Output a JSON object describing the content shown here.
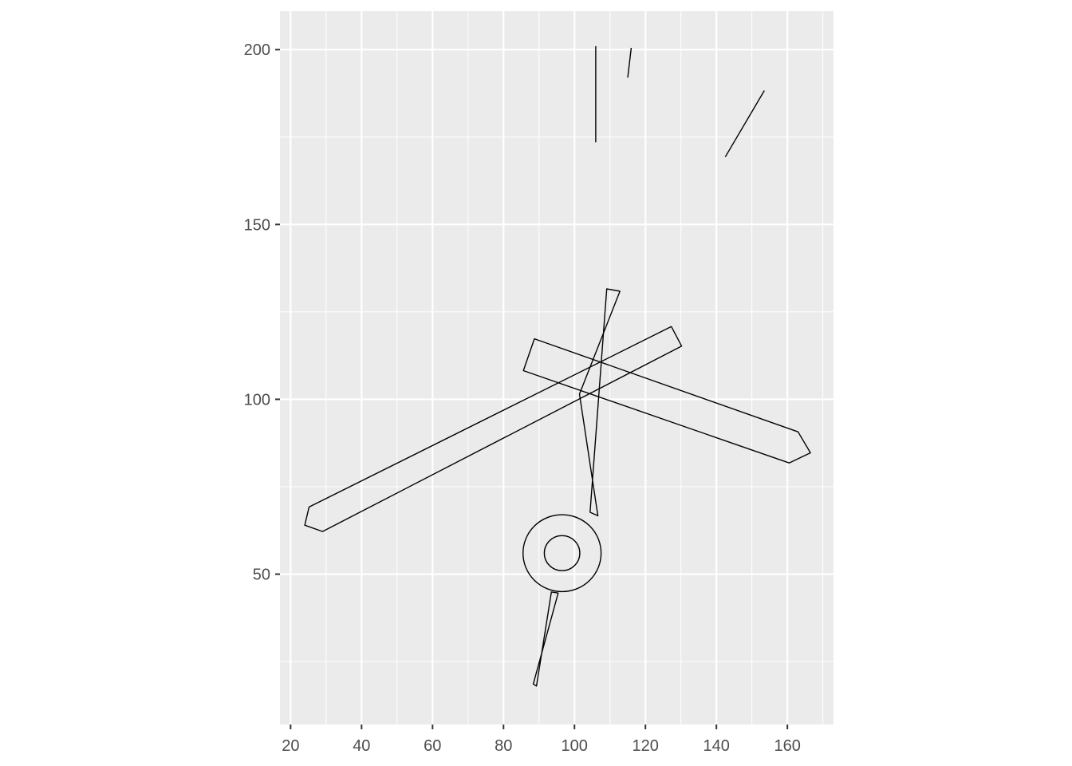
{
  "chart_data": {
    "type": "line",
    "title": "",
    "xlabel": "",
    "ylabel": "",
    "xlim": [
      17,
      173
    ],
    "ylim": [
      7,
      211
    ],
    "x_ticks": [
      20,
      40,
      60,
      80,
      100,
      120,
      140,
      160
    ],
    "y_ticks": [
      50,
      100,
      150,
      200
    ],
    "x_tick_labels": [
      "20",
      "40",
      "60",
      "80",
      "100",
      "120",
      "140",
      "160"
    ],
    "y_tick_labels": [
      "50",
      "100",
      "150",
      "200"
    ],
    "grid": true,
    "legend": "none",
    "colors": {
      "panel": "#ebebeb",
      "grid": "#ffffff",
      "line": "#000000",
      "tick_text": "#4d4d4d",
      "tick_mark": "#333333"
    },
    "series": [
      {
        "closed": true,
        "x": [
          24,
          25.2,
          127.3,
          130.2,
          29,
          24
        ],
        "y": [
          64,
          69.2,
          120.8,
          115.2,
          62.2,
          64
        ]
      },
      {
        "closed": true,
        "x": [
          85.6,
          88.7,
          163,
          166.5,
          160.5,
          85.6
        ],
        "y": [
          108.2,
          117.3,
          90.7,
          84.7,
          81.8,
          108.2
        ]
      },
      {
        "closed": true,
        "x": [
          109.1,
          112.8,
          101.4,
          106.6,
          104.4,
          109.1
        ],
        "y": [
          131.6,
          130.9,
          101.5,
          66.7,
          67.7,
          131.6
        ]
      },
      {
        "closed": true,
        "x": [
          95.4,
          93.5,
          89.3,
          88.4,
          95.4
        ],
        "y": [
          44.6,
          44.9,
          18,
          18.6,
          44.6
        ]
      },
      {
        "closed": true,
        "circle": true,
        "cx": 96.5,
        "cy": 56,
        "r": 11
      },
      {
        "closed": true,
        "circle": true,
        "cx": 96.5,
        "cy": 56,
        "r": 5
      },
      {
        "closed": false,
        "x": [
          106,
          106
        ],
        "y": [
          201,
          173.5
        ]
      },
      {
        "closed": false,
        "x": [
          116,
          115
        ],
        "y": [
          200.5,
          192
        ]
      },
      {
        "closed": false,
        "x": [
          142.5,
          153.5
        ],
        "y": [
          169.3,
          188.3
        ]
      }
    ]
  }
}
